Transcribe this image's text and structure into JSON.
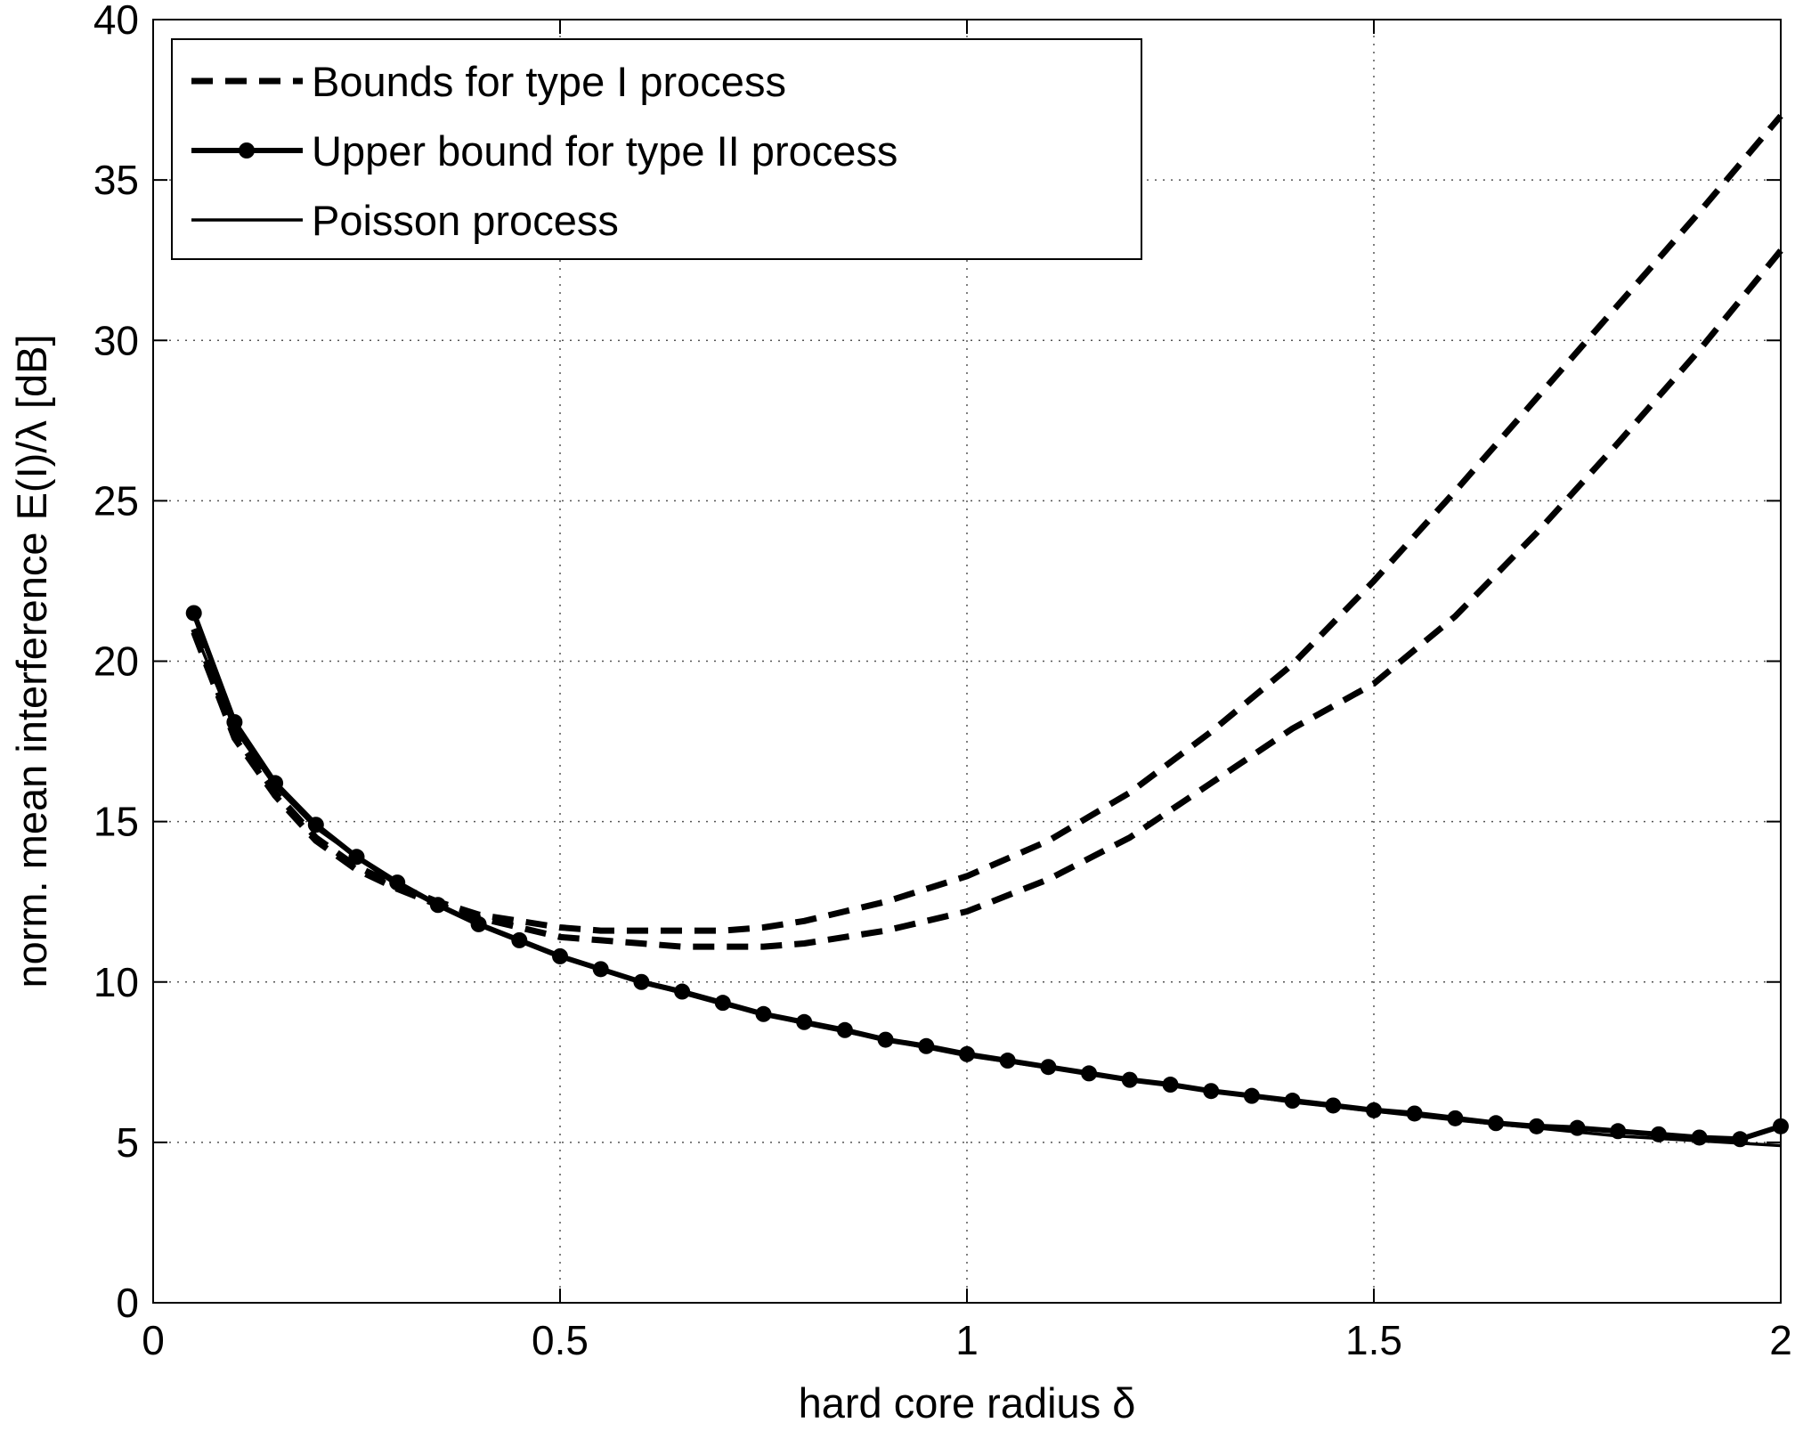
{
  "chart_data": {
    "type": "line",
    "xlabel": "hard core radius δ",
    "ylabel": "norm. mean interference E(I)/λ [dB]",
    "xlim": [
      0,
      2
    ],
    "ylim": [
      0,
      40
    ],
    "xticks": [
      0,
      0.5,
      1,
      1.5,
      2
    ],
    "xtick_labels": [
      "0",
      "0.5",
      "1",
      "1.5",
      "2"
    ],
    "yticks": [
      0,
      5,
      10,
      15,
      20,
      25,
      30,
      35,
      40
    ],
    "ytick_labels": [
      "0",
      "5",
      "10",
      "15",
      "20",
      "25",
      "30",
      "35",
      "40"
    ],
    "grid": true,
    "legend_position": "top-left",
    "legend": [
      {
        "label": "Bounds for type I process",
        "style": "dashed"
      },
      {
        "label": "Upper bound for type II process",
        "style": "solid-dots"
      },
      {
        "label": "Poisson process",
        "style": "solid-thin"
      }
    ],
    "series": [
      {
        "name": "Bounds for type I process",
        "style": "dashed",
        "x": [
          0.05,
          0.1,
          0.15,
          0.2,
          0.25,
          0.3,
          0.35,
          0.4,
          0.45,
          0.5,
          0.55,
          0.6,
          0.65,
          0.7,
          0.75,
          0.8,
          0.85,
          0.9,
          0.95,
          1.0,
          1.1,
          1.2,
          1.3,
          1.4,
          1.5,
          1.6,
          1.7,
          1.8,
          1.9,
          2.0
        ],
        "y": [
          21.0,
          17.7,
          15.9,
          14.5,
          13.6,
          13.0,
          12.5,
          12.1,
          11.9,
          11.7,
          11.6,
          11.6,
          11.6,
          11.6,
          11.7,
          11.9,
          12.2,
          12.5,
          12.9,
          13.3,
          14.4,
          15.9,
          17.8,
          19.9,
          22.5,
          25.3,
          28.2,
          31.1,
          34.0,
          37.0
        ]
      },
      {
        "name": "Bounds for type I process",
        "style": "dashed",
        "x": [
          0.05,
          0.1,
          0.15,
          0.2,
          0.25,
          0.3,
          0.35,
          0.4,
          0.45,
          0.5,
          0.55,
          0.6,
          0.65,
          0.7,
          0.75,
          0.8,
          0.85,
          0.9,
          0.95,
          1.0,
          1.1,
          1.2,
          1.3,
          1.4,
          1.5,
          1.6,
          1.7,
          1.8,
          1.9,
          2.0
        ],
        "y": [
          20.9,
          17.6,
          15.8,
          14.4,
          13.5,
          12.9,
          12.4,
          12.0,
          11.7,
          11.4,
          11.3,
          11.2,
          11.1,
          11.1,
          11.1,
          11.2,
          11.4,
          11.6,
          11.9,
          12.2,
          13.2,
          14.5,
          16.2,
          17.9,
          19.3,
          21.4,
          24.0,
          26.8,
          29.7,
          32.8
        ]
      },
      {
        "name": "Upper bound for type II process",
        "style": "solid-dots",
        "x": [
          0.05,
          0.1,
          0.15,
          0.2,
          0.25,
          0.3,
          0.35,
          0.4,
          0.45,
          0.5,
          0.55,
          0.6,
          0.65,
          0.7,
          0.75,
          0.8,
          0.85,
          0.9,
          0.95,
          1.0,
          1.05,
          1.1,
          1.15,
          1.2,
          1.25,
          1.3,
          1.35,
          1.4,
          1.45,
          1.5,
          1.55,
          1.6,
          1.65,
          1.7,
          1.75,
          1.8,
          1.85,
          1.9,
          1.95,
          2.0
        ],
        "y": [
          21.5,
          18.1,
          16.2,
          14.9,
          13.9,
          13.1,
          12.4,
          11.8,
          11.3,
          10.8,
          10.4,
          10.0,
          9.7,
          9.35,
          9.0,
          8.75,
          8.5,
          8.2,
          8.0,
          7.75,
          7.55,
          7.35,
          7.15,
          6.95,
          6.8,
          6.6,
          6.45,
          6.3,
          6.15,
          6.0,
          5.9,
          5.75,
          5.6,
          5.5,
          5.45,
          5.35,
          5.25,
          5.15,
          5.1,
          5.5
        ]
      },
      {
        "name": "Poisson process",
        "style": "solid-thin",
        "x": [
          0.05,
          0.1,
          0.15,
          0.2,
          0.25,
          0.3,
          0.35,
          0.4,
          0.5,
          0.6,
          0.7,
          0.8,
          0.9,
          1.0,
          1.2,
          1.4,
          1.6,
          1.8,
          2.0
        ],
        "y": [
          21.0,
          17.9,
          16.1,
          14.8,
          13.9,
          13.0,
          12.4,
          11.8,
          10.8,
          10.0,
          9.3,
          8.7,
          8.2,
          7.7,
          6.95,
          6.25,
          5.7,
          5.2,
          4.9
        ]
      }
    ]
  }
}
